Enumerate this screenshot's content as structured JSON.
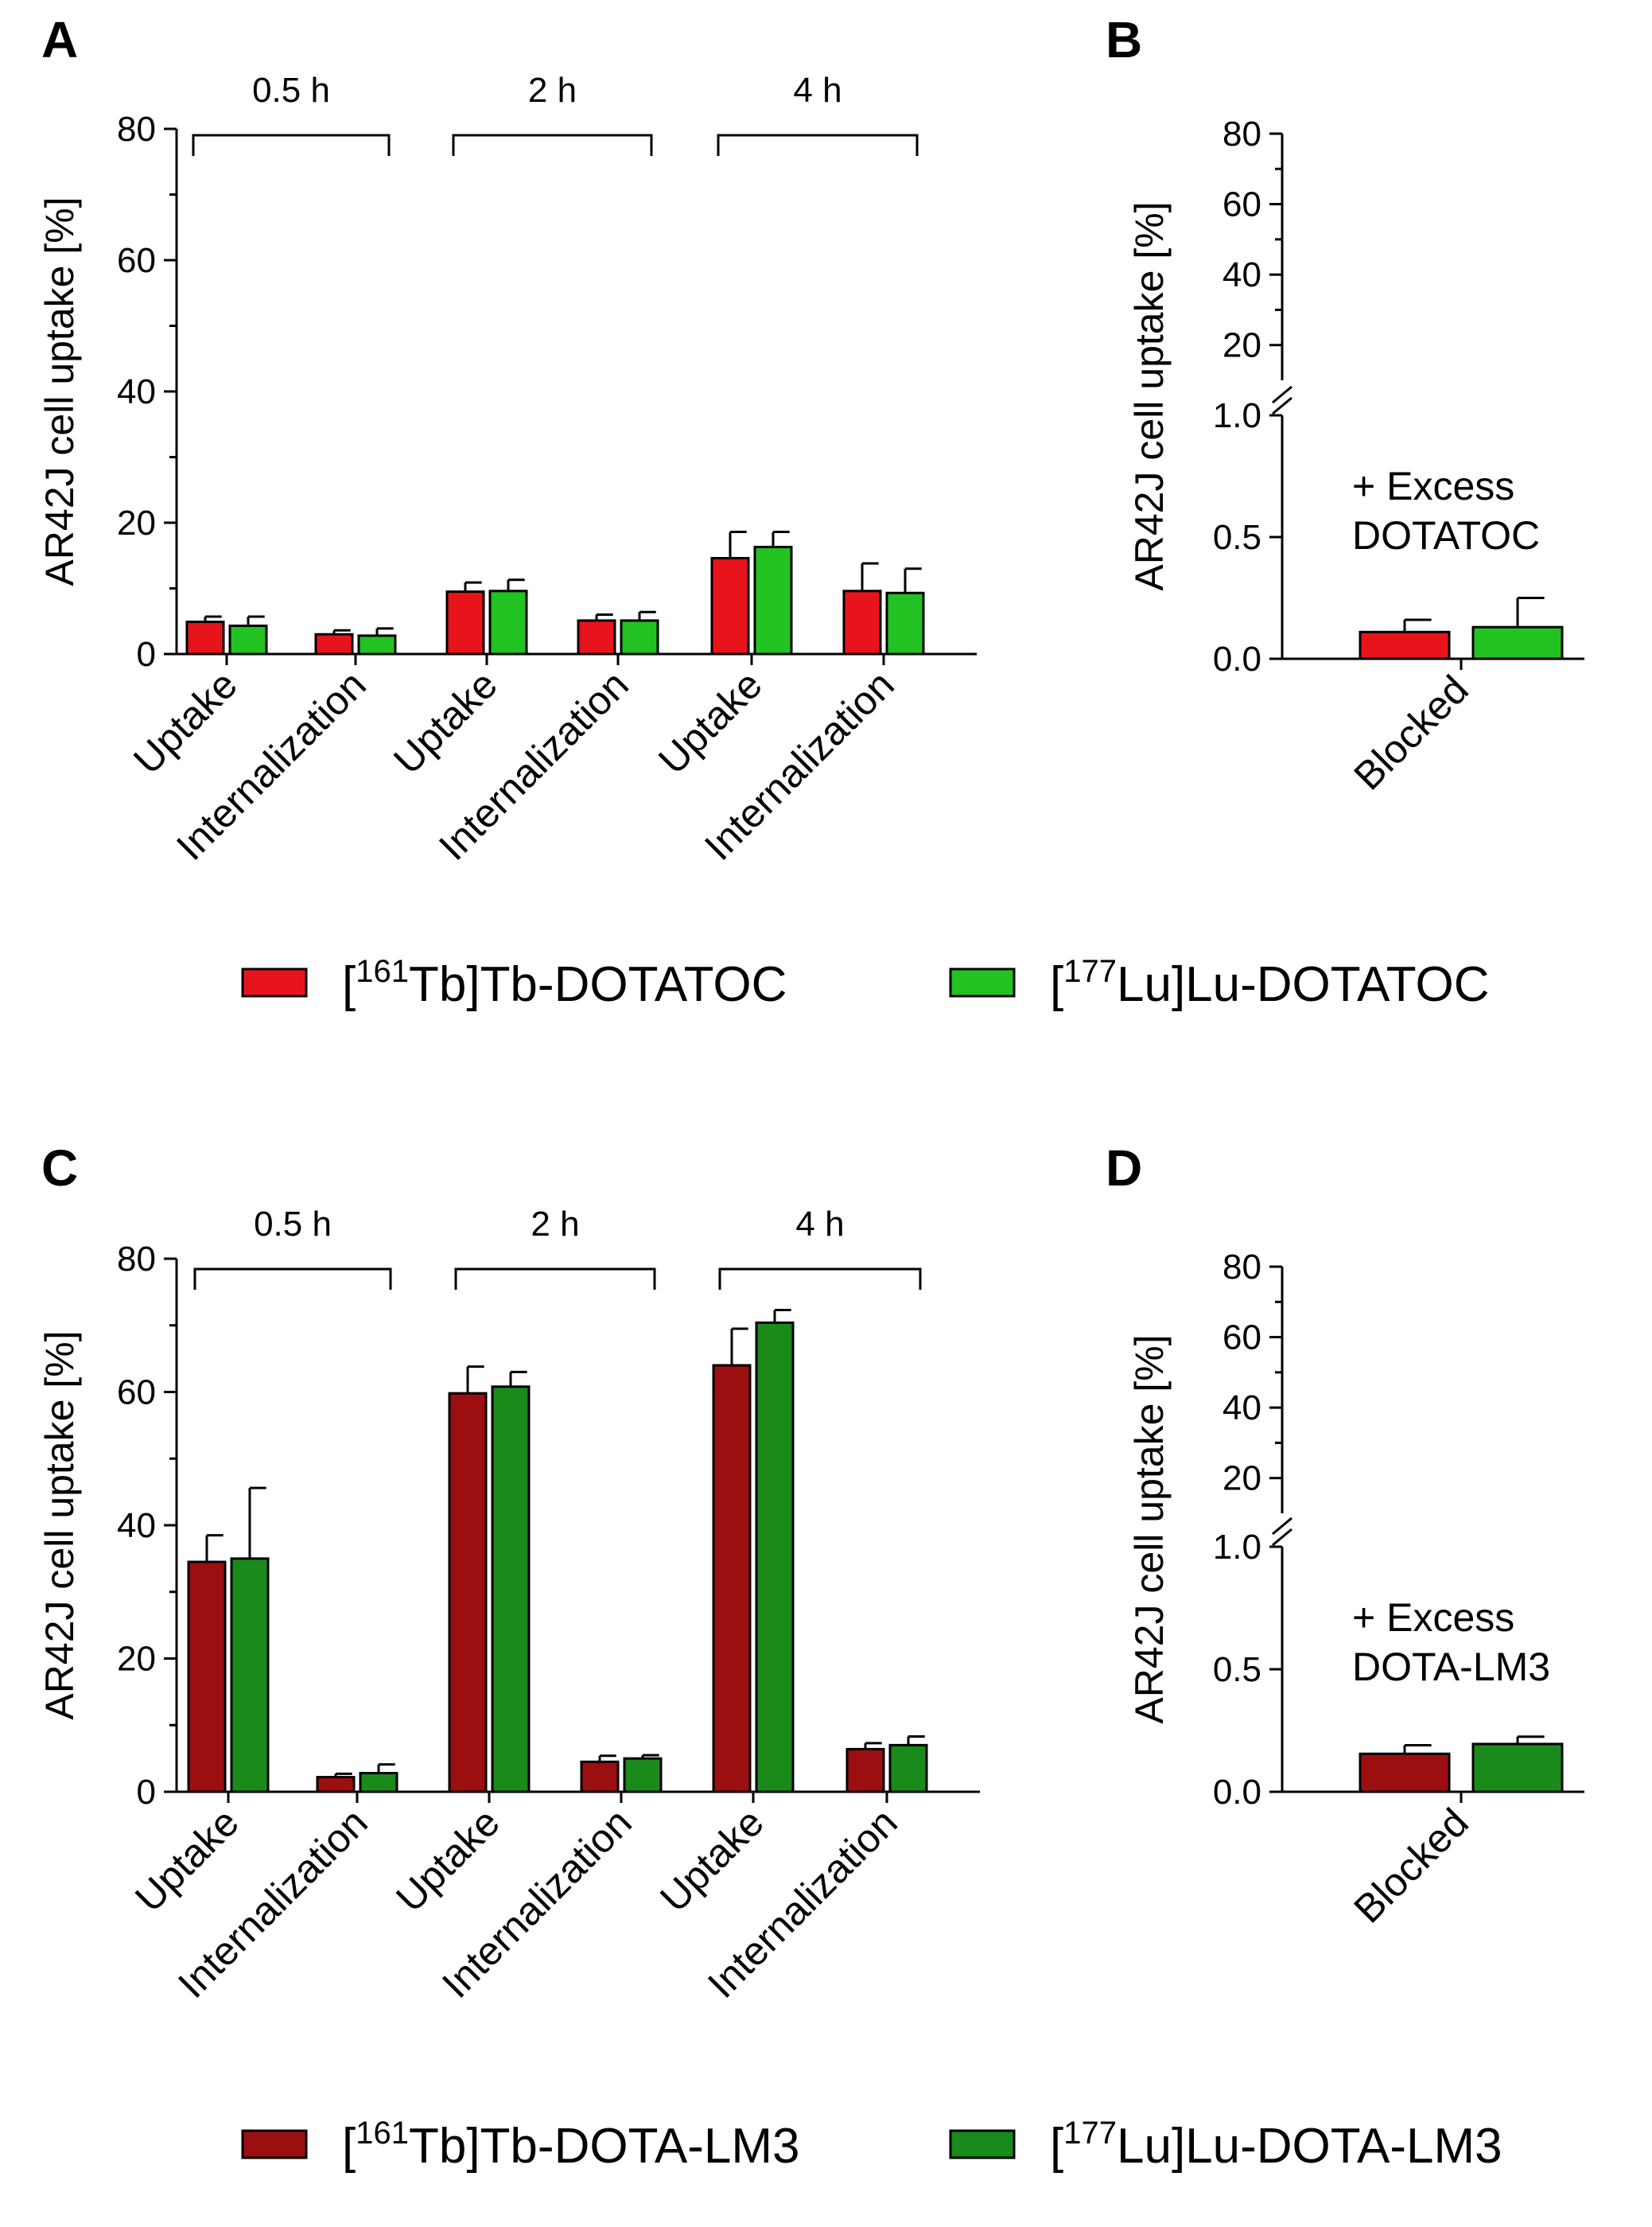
{
  "figure": {
    "legends": {
      "top": [
        {
          "prefix": "[",
          "sup": "161",
          "rest": "Tb]Tb-DOTATOC",
          "color": "#e8141b"
        },
        {
          "prefix": "[",
          "sup": "177",
          "rest": "Lu]Lu-DOTATOC",
          "color": "#21c221"
        }
      ],
      "bottom": [
        {
          "prefix": "[",
          "sup": "161",
          "rest": "Tb]Tb-DOTA-LM3",
          "color": "#9b0f10"
        },
        {
          "prefix": "[",
          "sup": "177",
          "rest": "Lu]Lu-DOTA-LM3",
          "color": "#1a8a1a"
        }
      ]
    }
  },
  "chart_data": [
    {
      "panel": "A",
      "type": "bar",
      "ylabel": "AR42J cell uptake [%]",
      "ylim": [
        0,
        80
      ],
      "yticks": [
        "0",
        "20",
        "40",
        "60",
        "80"
      ],
      "categories": [
        "Uptake",
        "Internalization",
        "Uptake",
        "Internalization",
        "Uptake",
        "Internalization"
      ],
      "time_groups": [
        "0.5 h",
        "2 h",
        "4 h"
      ],
      "series": [
        {
          "name": "[161Tb]Tb-DOTATOC",
          "color": "#e8141b",
          "values": [
            4.9,
            3.0,
            9.5,
            5.1,
            14.6,
            9.6
          ],
          "errors": [
            0.8,
            0.6,
            1.4,
            0.9,
            4.0,
            4.2
          ]
        },
        {
          "name": "[177Lu]Lu-DOTATOC",
          "color": "#21c221",
          "values": [
            4.3,
            2.8,
            9.6,
            5.1,
            16.3,
            9.3
          ],
          "errors": [
            1.4,
            1.1,
            1.7,
            1.3,
            2.3,
            3.7
          ]
        }
      ]
    },
    {
      "panel": "B",
      "type": "bar",
      "ylabel": "AR42J cell uptake [%]",
      "ylim_lower": [
        0,
        1.0
      ],
      "ylim_upper": [
        10,
        80
      ],
      "yticks_lower": [
        "0.0",
        "0.5",
        "1.0"
      ],
      "yticks_upper": [
        "20",
        "40",
        "60",
        "80"
      ],
      "categories": [
        "Blocked"
      ],
      "annotation": [
        "+ Excess",
        "DOTATOC"
      ],
      "series": [
        {
          "name": "[161Tb]Tb-DOTATOC",
          "color": "#e8141b",
          "values": [
            0.11
          ],
          "errors": [
            0.05
          ]
        },
        {
          "name": "[177Lu]Lu-DOTATOC",
          "color": "#21c221",
          "values": [
            0.13
          ],
          "errors": [
            0.12
          ]
        }
      ]
    },
    {
      "panel": "C",
      "type": "bar",
      "ylabel": "AR42J cell uptake [%]",
      "ylim": [
        0,
        80
      ],
      "yticks": [
        "0",
        "20",
        "40",
        "60",
        "80"
      ],
      "categories": [
        "Uptake",
        "Internalization",
        "Uptake",
        "Internalization",
        "Uptake",
        "Internalization"
      ],
      "time_groups": [
        "0.5 h",
        "2 h",
        "4 h"
      ],
      "series": [
        {
          "name": "[161Tb]Tb-DOTA-LM3",
          "color": "#9b0f10",
          "values": [
            34.5,
            2.2,
            59.8,
            4.5,
            64.0,
            6.4
          ],
          "errors": [
            4.0,
            0.5,
            4.0,
            0.9,
            5.5,
            0.9
          ]
        },
        {
          "name": "[177Lu]Lu-DOTA-LM3",
          "color": "#1a8a1a",
          "values": [
            35.0,
            2.8,
            60.8,
            5.0,
            70.4,
            7.0
          ],
          "errors": [
            10.6,
            1.3,
            2.2,
            0.5,
            1.9,
            1.3
          ]
        }
      ]
    },
    {
      "panel": "D",
      "type": "bar",
      "ylabel": "AR42J cell uptake [%]",
      "ylim_lower": [
        0,
        1.0
      ],
      "ylim_upper": [
        10,
        80
      ],
      "yticks_lower": [
        "0.0",
        "0.5",
        "1.0"
      ],
      "yticks_upper": [
        "20",
        "40",
        "60",
        "80"
      ],
      "categories": [
        "Blocked"
      ],
      "annotation": [
        "+ Excess",
        "DOTA-LM3"
      ],
      "series": [
        {
          "name": "[161Tb]Tb-DOTA-LM3",
          "color": "#9b0f10",
          "values": [
            0.155
          ],
          "errors": [
            0.035
          ]
        },
        {
          "name": "[177Lu]Lu-DOTA-LM3",
          "color": "#1a8a1a",
          "values": [
            0.195
          ],
          "errors": [
            0.03
          ]
        }
      ]
    }
  ]
}
